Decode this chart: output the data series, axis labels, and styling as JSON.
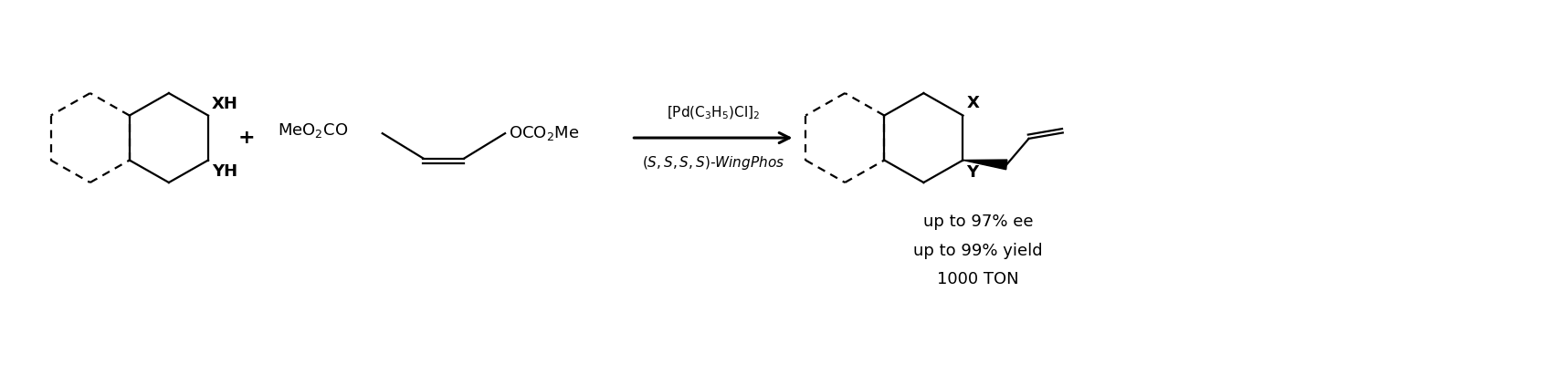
{
  "background_color": "#ffffff",
  "text_color": "#000000",
  "figure_width": 16.94,
  "figure_height": 4.0,
  "dpi": 100,
  "reagent_line1": "[Pd(C$_3$H$_5$)Cl]$_2$",
  "reagent_line2": "$(S,S,S,S)$-WingPhos",
  "result_line1": "up to 97% ee",
  "result_line2": "up to 99% yield",
  "result_line3": "1000 TON",
  "plus_sign": "+",
  "xh_label": "XH",
  "yh_label": "YH",
  "x_label": "X",
  "y_label": "Y",
  "meo2co_label": "MeO$_2$CO",
  "oco2me_label": "OCO$_2$Me"
}
